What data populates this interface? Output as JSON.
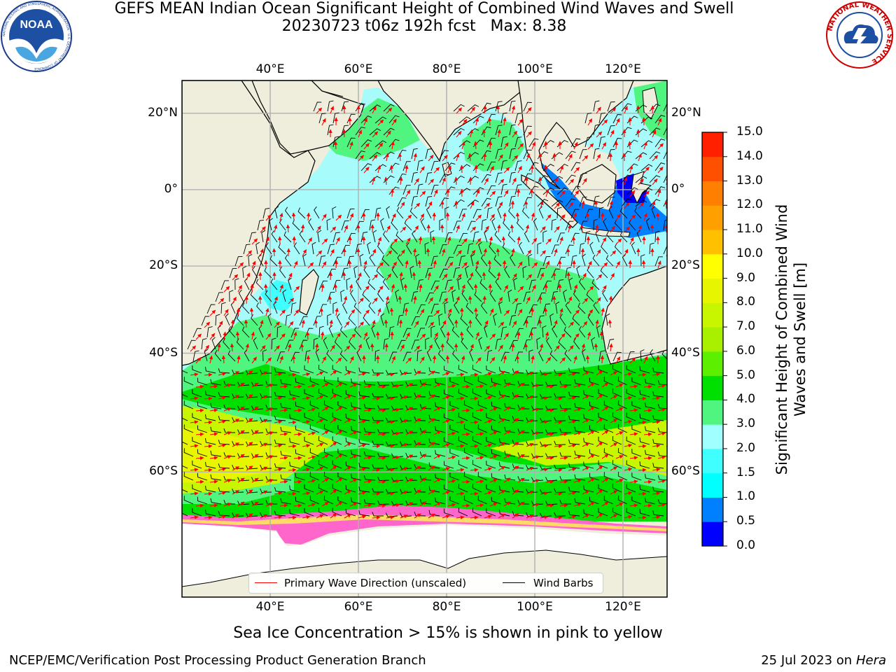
{
  "title": {
    "line1": "GEFS MEAN Indian Ocean Significant Height of Combined Wind Waves and Swell",
    "line2": "20230723 t06z 192h fcst   Max: 8.38"
  },
  "map": {
    "lon_range": [
      20,
      130
    ],
    "lat_range": [
      -73,
      28
    ],
    "lon_ticks": [
      "40°E",
      "60°E",
      "80°E",
      "100°E",
      "120°E"
    ],
    "lat_ticks": [
      "20°N",
      "0°",
      "20°S",
      "40°S",
      "60°S"
    ],
    "land_color": "#efeedc",
    "grid_color": "#b0b0b0"
  },
  "colorbar": {
    "label": "Significant Height of Combined Wind Waves and Swell [m]",
    "ticks": [
      "0.0",
      "0.5",
      "1.0",
      "1.5",
      "2.0",
      "3.0",
      "4.0",
      "5.0",
      "6.0",
      "7.0",
      "8.0",
      "9.0",
      "10.0",
      "11.0",
      "12.0",
      "13.0",
      "14.0",
      "15.0"
    ],
    "colors": [
      "#0000ff",
      "#0080ff",
      "#00ffff",
      "#40ffff",
      "#a0ffff",
      "#50f580",
      "#00e000",
      "#5cf000",
      "#a8f000",
      "#c8f500",
      "#e8f500",
      "#ffff00",
      "#ffc000",
      "#ffa000",
      "#ff8000",
      "#ff5000",
      "#ff2000"
    ]
  },
  "legend": {
    "items": [
      {
        "label": "Primary Wave Direction (unscaled)",
        "color": "#ff0000"
      },
      {
        "label": "Wind Barbs",
        "color": "#000000"
      }
    ]
  },
  "logos": {
    "noaa_text": "NOAA",
    "noaa_ring": "NATIONAL OCEANIC AND ATMOSPHERIC ADMINISTRATION · U.S. DEPARTMENT OF COMMERCE",
    "nws_ring": "NATIONAL WEATHER SERVICE"
  },
  "caption": "Sea Ice Concentration > 15% is shown in pink to yellow",
  "footer": {
    "left": "NCEP/EMC/Verification Post Processing Product Generation Branch",
    "right_prefix": "25 Jul 2023 on ",
    "right_host": "Hera"
  }
}
